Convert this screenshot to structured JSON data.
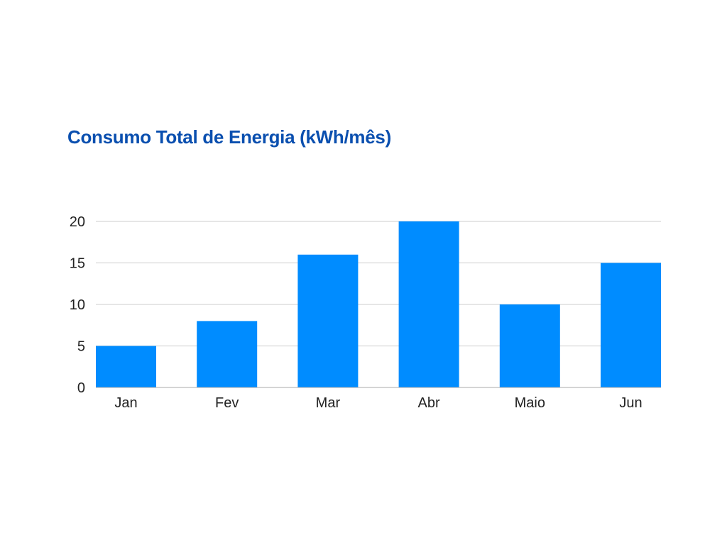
{
  "chart_data": {
    "type": "bar",
    "title": "Consumo Total de Energia (kWh/mês)",
    "xlabel": "",
    "ylabel": "",
    "categories": [
      "Jan",
      "Fev",
      "Mar",
      "Abr",
      "Maio",
      "Jun"
    ],
    "values": [
      5,
      8,
      16,
      20,
      10,
      15
    ],
    "ylim": [
      0,
      20
    ],
    "yticks": [
      0,
      5,
      10,
      15,
      20
    ],
    "grid": true,
    "legend": "none"
  },
  "colors": {
    "bar": "#008CFF",
    "title": "#0A4FAF",
    "grid": "#CCCCCC",
    "axis": "#AAAAAA"
  }
}
